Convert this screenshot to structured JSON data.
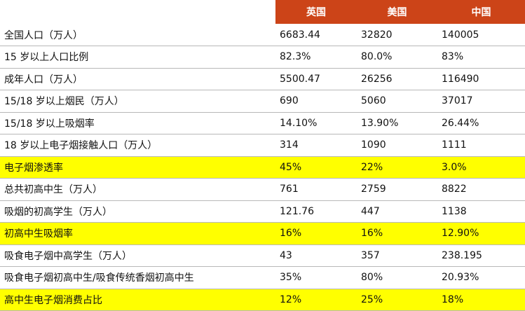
{
  "header": {
    "label": "",
    "col1": "英国",
    "col2": "美国",
    "col3": "中国"
  },
  "rows": [
    {
      "label": "全国人口（万人）",
      "uk": "6683.44",
      "us": "32820",
      "cn": "140005",
      "highlight": false
    },
    {
      "label": "15 岁以上人口比例",
      "uk": "82.3%",
      "us": "80.0%",
      "cn": "83%",
      "highlight": false
    },
    {
      "label": "成年人口（万人）",
      "uk": "5500.47",
      "us": "26256",
      "cn": "116490",
      "highlight": false
    },
    {
      "label": "15/18 岁以上烟民（万人）",
      "uk": "690",
      "us": "5060",
      "cn": "37017",
      "highlight": false
    },
    {
      "label": "15/18 岁以上吸烟率",
      "uk": "14.10%",
      "us": "13.90%",
      "cn": "26.44%",
      "highlight": false
    },
    {
      "label": "18 岁以上电子烟接触人口（万人）",
      "uk": "314",
      "us": "1090",
      "cn": "1111",
      "highlight": false
    },
    {
      "label": "电子烟渗透率",
      "uk": "45%",
      "us": "22%",
      "cn": "3.0%",
      "highlight": true
    },
    {
      "label": "总共初高中生（万人）",
      "uk": "761",
      "us": "2759",
      "cn": "8822",
      "highlight": false
    },
    {
      "label": "吸烟的初高学生（万人）",
      "uk": "121.76",
      "us": "447",
      "cn": "1138",
      "highlight": false
    },
    {
      "label": "初高中生吸烟率",
      "uk": "16%",
      "us": "16%",
      "cn": "12.90%",
      "highlight": true
    },
    {
      "label": "吸食电子烟中高学生（万人）",
      "uk": "43",
      "us": "357",
      "cn": "238.195",
      "highlight": false
    },
    {
      "label": "吸食电子烟初高中生/吸食传统香烟初高中生",
      "uk": "35%",
      "us": "80%",
      "cn": "20.93%",
      "highlight": false
    },
    {
      "label": "高中生电子烟消费占比",
      "uk": "12%",
      "us": "25%",
      "cn": "18%",
      "highlight": true
    }
  ],
  "colors": {
    "header_bg": "#cc4418",
    "header_text": "#ffffff",
    "highlight_bg": "#ffff00",
    "row_border": "#b8b8b8"
  }
}
